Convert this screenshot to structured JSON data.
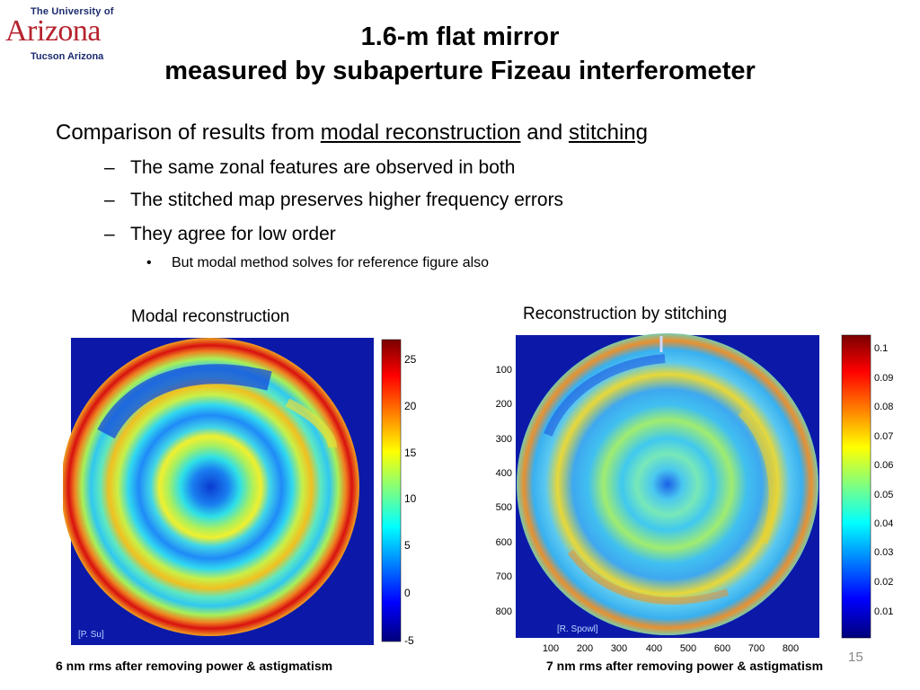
{
  "logo": {
    "line1": "The University of",
    "line2": "Arizona",
    "line3": "Tucson Arizona"
  },
  "title": {
    "line1": "1.6-m flat mirror",
    "line2": "measured by subaperture Fizeau interferometer"
  },
  "intro": {
    "prefix": "Comparison of results from ",
    "link1": "modal reconstruction",
    "middle": " and ",
    "link2": "stitching"
  },
  "points": [
    "The same zonal features are observed in both",
    "The stitched map preserves higher frequency errors",
    "They agree for low order"
  ],
  "subpoint": "But modal method solves for reference figure also",
  "left_panel": {
    "caption": "Modal reconstruction",
    "credit": "[P. Su]",
    "colorbar_ticks": [
      "25",
      "20",
      "15",
      "10",
      "5",
      "0",
      "-5"
    ],
    "footnote": "6 nm rms after removing power & astigmatism"
  },
  "right_panel": {
    "caption": "Reconstruction by stitching",
    "credit": "[R. Spowl]",
    "y_ticks": [
      "100",
      "200",
      "300",
      "400",
      "500",
      "600",
      "700",
      "800"
    ],
    "x_ticks": [
      "100",
      "200",
      "300",
      "400",
      "500",
      "600",
      "700",
      "800"
    ],
    "colorbar_ticks": [
      "0.1",
      "0.09",
      "0.08",
      "0.07",
      "0.06",
      "0.05",
      "0.04",
      "0.03",
      "0.02",
      "0.01"
    ],
    "footnote": "7 nm rms after removing power & astigmatism"
  },
  "page_number": "15",
  "colors": {
    "accent": "#b5232e",
    "logo_blue": "#1a2b6d",
    "field": "#0c19a8"
  }
}
